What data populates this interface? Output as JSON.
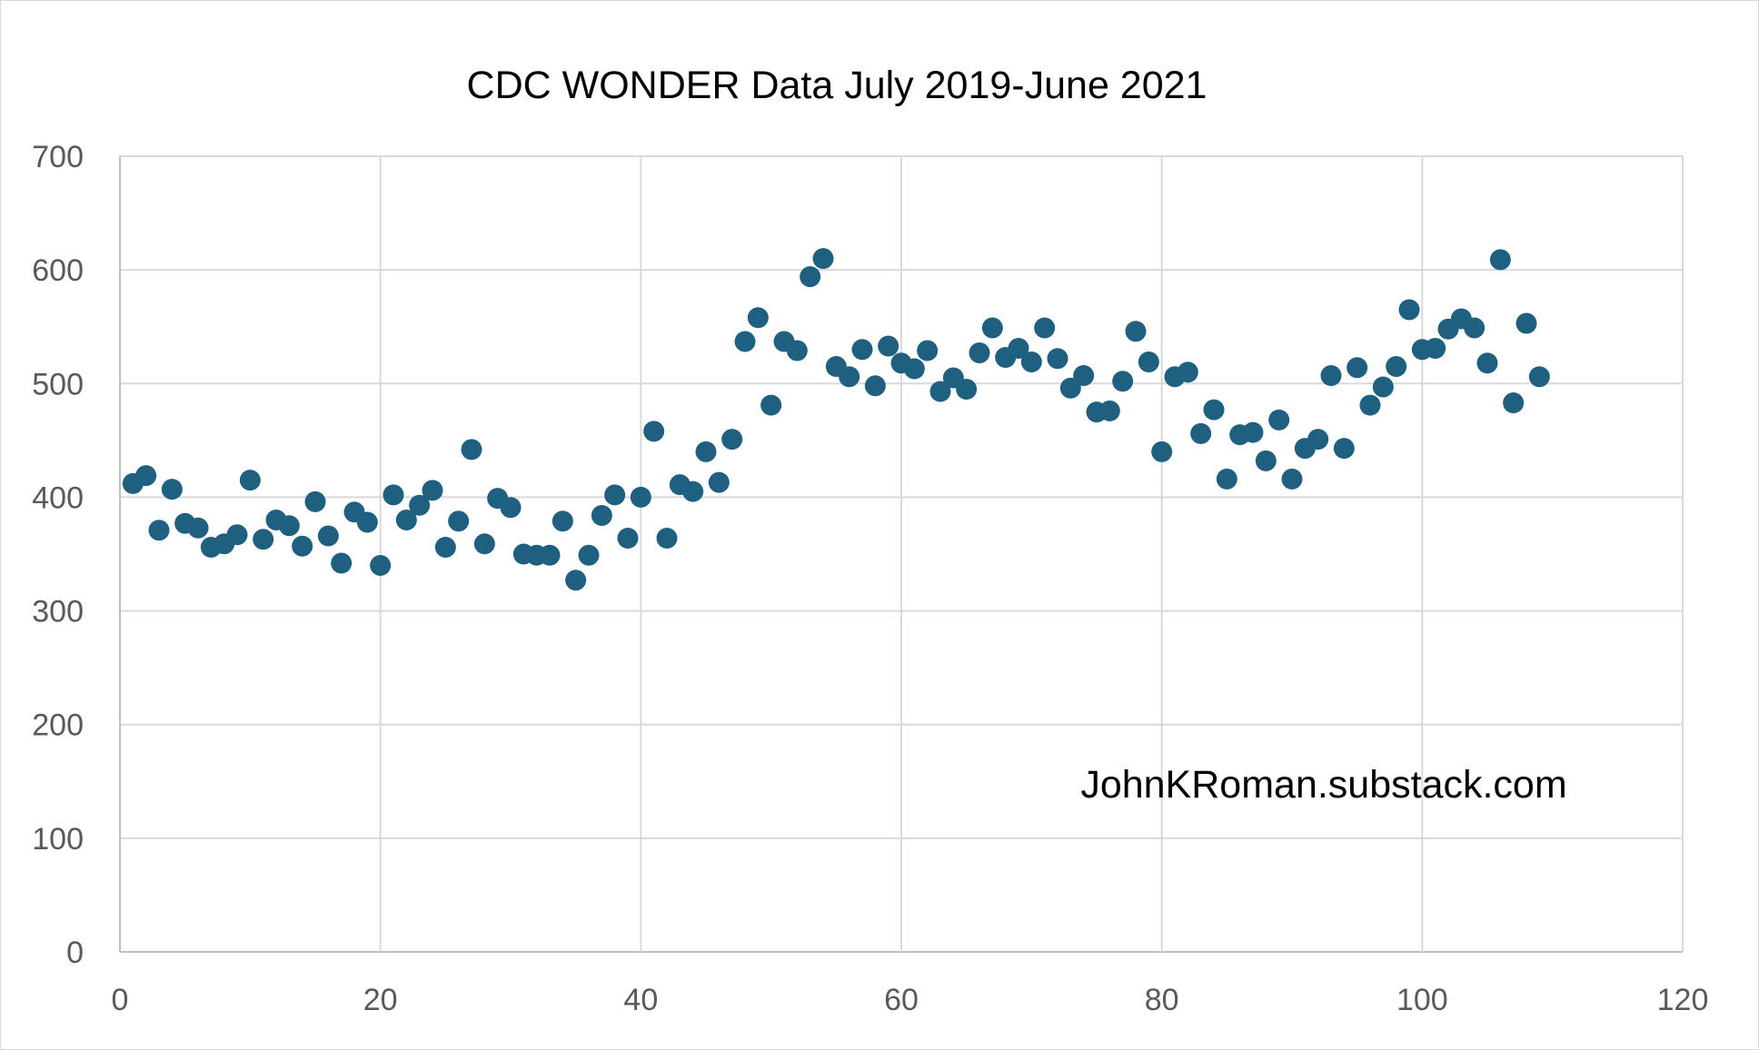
{
  "chart_data": {
    "type": "scatter",
    "title": "CDC WONDER Data July 2019-June 2021",
    "xlabel": "",
    "ylabel": "",
    "xlim": [
      0,
      120
    ],
    "ylim": [
      0,
      700
    ],
    "x_ticks": [
      "0",
      "20",
      "40",
      "60",
      "80",
      "100",
      "120"
    ],
    "y_ticks": [
      "0",
      "100",
      "200",
      "300",
      "400",
      "500",
      "600",
      "700"
    ],
    "grid": true,
    "legend": "none",
    "annotation": "JohnKRoman.substack.com",
    "marker_color": "#1f5f7f",
    "series": [
      {
        "x": [
          1,
          2,
          3,
          4,
          5,
          6,
          7,
          8,
          9,
          10,
          11,
          12,
          13,
          14,
          15,
          16,
          17,
          18,
          19,
          20,
          21,
          22,
          23,
          24,
          25,
          26,
          27,
          28,
          29,
          30,
          31,
          32,
          33,
          34,
          35,
          36,
          37,
          38,
          39,
          40,
          41,
          42,
          43,
          44,
          45,
          46,
          47,
          48,
          49,
          50,
          51,
          52,
          53,
          54,
          55,
          56,
          57,
          58,
          59,
          60,
          61,
          62,
          63,
          64,
          65,
          66,
          67,
          68,
          69,
          70,
          71,
          72,
          73,
          74,
          75,
          76,
          77,
          78,
          79,
          80,
          81,
          82,
          83,
          84,
          85,
          86,
          87,
          88,
          89,
          90,
          91,
          92,
          93,
          94,
          95,
          96,
          97,
          98,
          99,
          100,
          101,
          102,
          103,
          104,
          105,
          106,
          107,
          108,
          109
        ],
        "y": [
          412,
          419,
          371,
          407,
          377,
          373,
          356,
          359,
          367,
          415,
          363,
          380,
          375,
          357,
          396,
          366,
          342,
          387,
          378,
          340,
          402,
          380,
          393,
          406,
          356,
          379,
          442,
          359,
          399,
          391,
          350,
          349,
          349,
          379,
          327,
          349,
          384,
          402,
          364,
          400,
          458,
          364,
          411,
          405,
          440,
          413,
          451,
          537,
          558,
          481,
          537,
          529,
          594,
          610,
          515,
          506,
          530,
          498,
          533,
          518,
          513,
          529,
          493,
          505,
          495,
          527,
          549,
          523,
          531,
          519,
          549,
          522,
          496,
          507,
          475,
          476,
          502,
          546,
          519,
          440,
          506,
          510,
          456,
          477,
          416,
          455,
          457,
          432,
          468,
          416,
          443,
          451,
          507,
          443,
          514,
          481,
          497,
          515,
          565,
          530,
          531,
          548,
          557,
          549,
          518,
          609,
          483,
          553,
          506
        ]
      }
    ]
  }
}
